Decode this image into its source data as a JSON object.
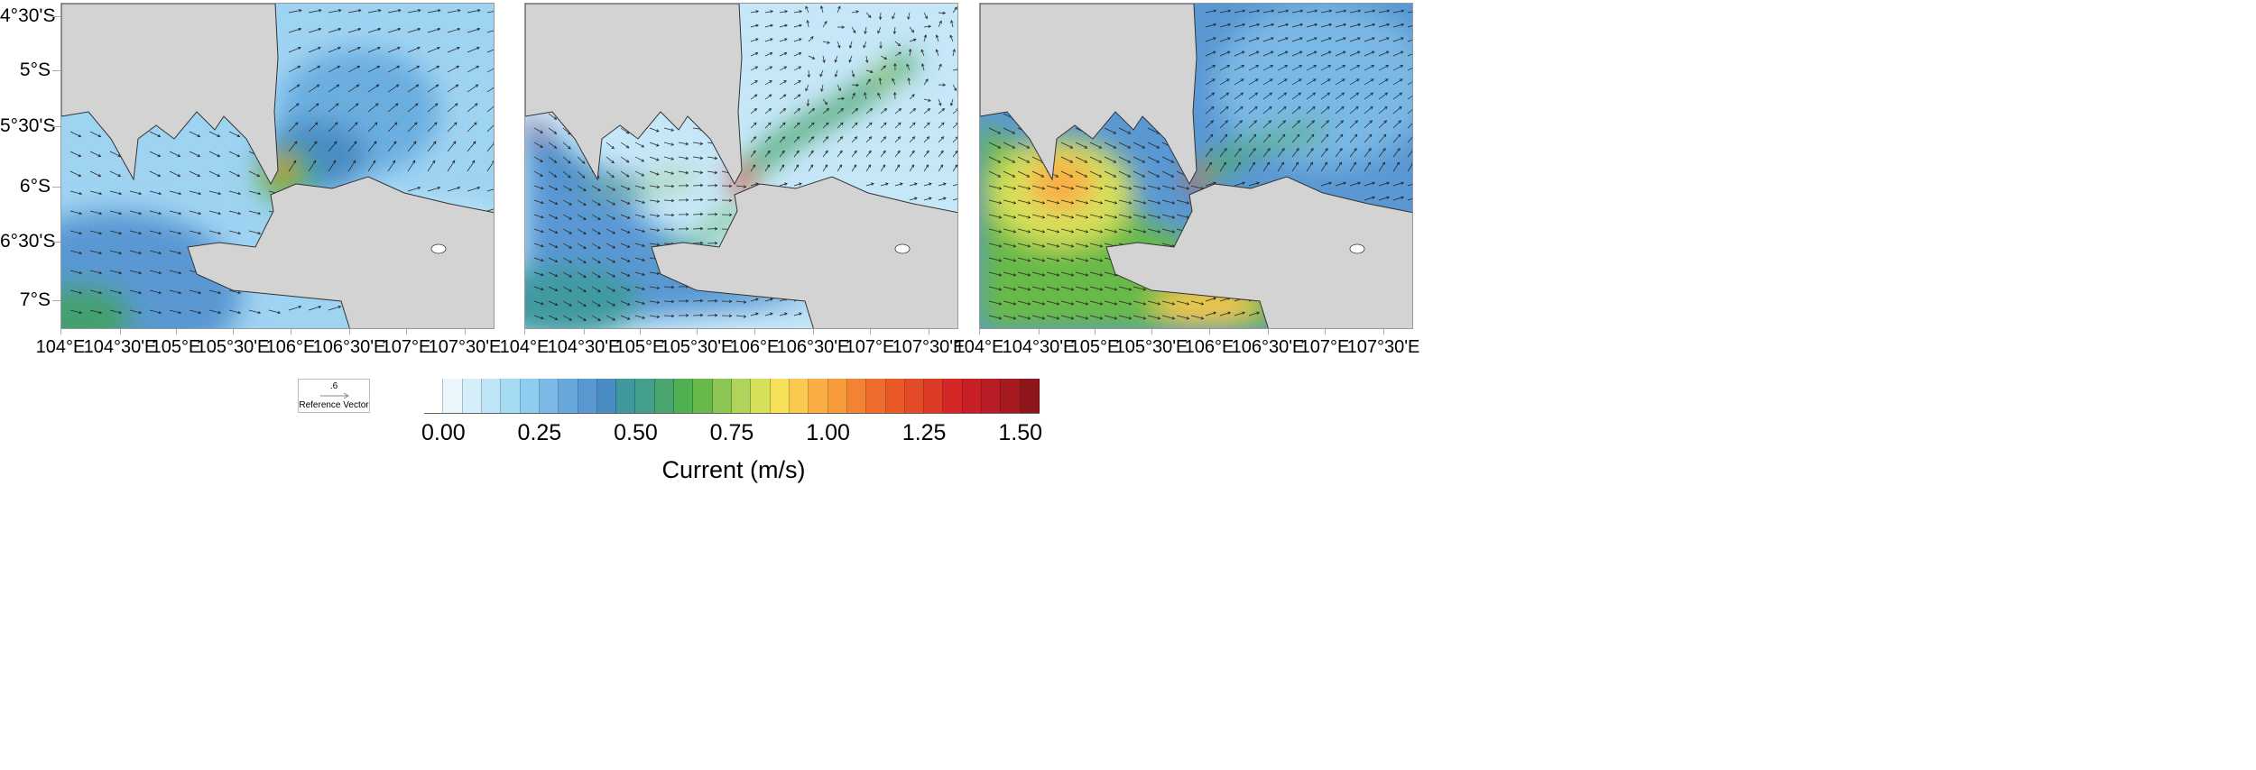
{
  "figure": {
    "lat_labels": [
      "4°30'S",
      "5°S",
      "5°30'S",
      "6°S",
      "6°30'S",
      "7°S"
    ],
    "lon_labels": [
      "104°E",
      "104°30'E",
      "105°E",
      "105°30'E",
      "106°E",
      "106°30'E",
      "107°E",
      "107°30'E"
    ],
    "panels": [
      {
        "name": "panel-1"
      },
      {
        "name": "panel-2"
      },
      {
        "name": "panel-3"
      }
    ],
    "land_color": "#d3d3d3",
    "reference_vector": {
      "value": ".6",
      "label": "Reference Vector"
    },
    "colorbar": {
      "title": "Current (m/s)",
      "ticks": [
        "0.00",
        "0.25",
        "0.50",
        "0.75",
        "1.00",
        "1.25",
        "1.50"
      ],
      "range": [
        0,
        1.5
      ],
      "step": 0.05,
      "colors": [
        "#ffffff",
        "#eaf6fc",
        "#d4eefa",
        "#bde5f7",
        "#a6dbf4",
        "#8fcdf0",
        "#7ab8e5",
        "#67a7dc",
        "#5a98d3",
        "#4a8cc4",
        "#3f9aa0",
        "#439e8c",
        "#4aa46e",
        "#4eb04e",
        "#67b94a",
        "#8cc652",
        "#b0d45a",
        "#d7e05a",
        "#f6e05a",
        "#fbc850",
        "#f9ae45",
        "#f79a3a",
        "#f38333",
        "#ee6c2d",
        "#e95a28",
        "#e34a26",
        "#dc3a24",
        "#d42727",
        "#c81f27",
        "#b81c24",
        "#a61a20",
        "#8e161b"
      ]
    }
  }
}
